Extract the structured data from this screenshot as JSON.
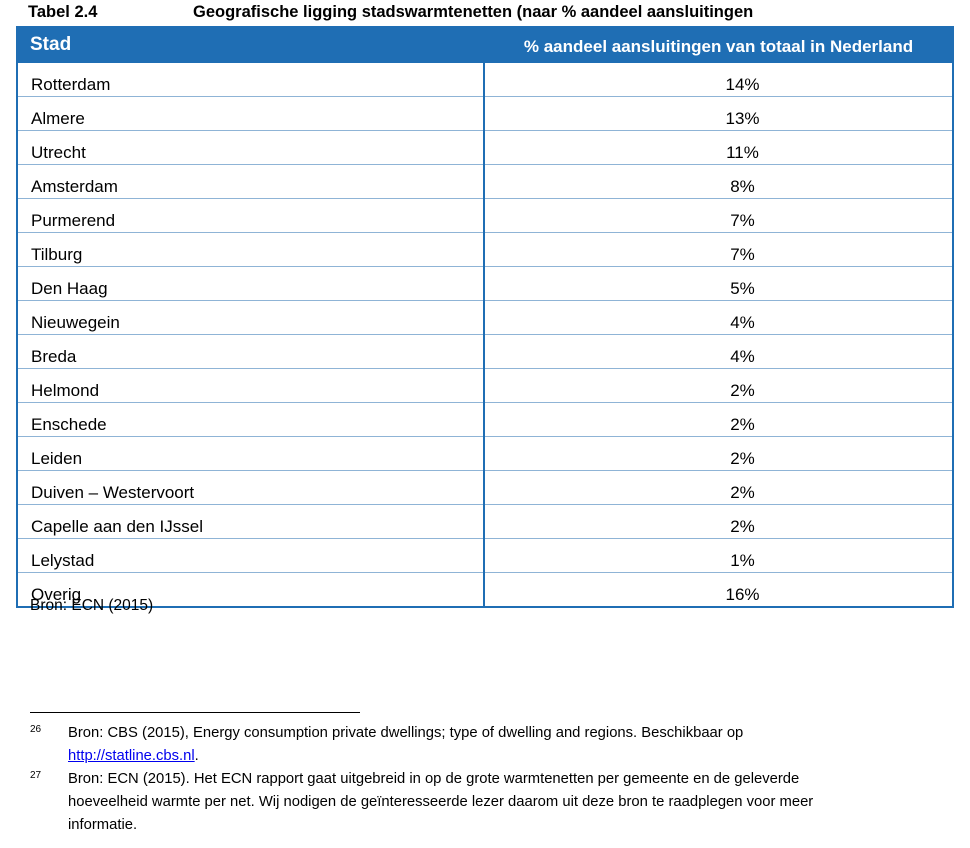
{
  "caption": {
    "number": "Tabel 2.4",
    "title": "Geografische ligging stadswarmtenetten (naar % aandeel aansluitingen"
  },
  "table": {
    "headers": [
      "Stad",
      "% aandeel aansluitingen van totaal in Nederland"
    ],
    "rows": [
      {
        "city": "Rotterdam",
        "share": "14%"
      },
      {
        "city": "Almere",
        "share": "13%"
      },
      {
        "city": "Utrecht",
        "share": "11%"
      },
      {
        "city": "Amsterdam",
        "share": "8%"
      },
      {
        "city": "Purmerend",
        "share": "7%"
      },
      {
        "city": "Tilburg",
        "share": "7%"
      },
      {
        "city": "Den Haag",
        "share": "5%"
      },
      {
        "city": "Nieuwegein",
        "share": "4%"
      },
      {
        "city": "Breda",
        "share": "4%"
      },
      {
        "city": "Helmond",
        "share": "2%"
      },
      {
        "city": "Enschede",
        "share": "2%"
      },
      {
        "city": "Leiden",
        "share": "2%"
      },
      {
        "city": "Duiven – Westervoort",
        "share": "2%"
      },
      {
        "city": "Capelle aan den IJssel",
        "share": "2%"
      },
      {
        "city": "Lelystad",
        "share": "1%"
      },
      {
        "city": "Overig",
        "share": "16%"
      }
    ]
  },
  "source": "Bron: ECN (2015)",
  "footnotes": [
    {
      "mark": "26",
      "text": "Bron: CBS (2015), Energy consumption private dwellings; type of dwelling and regions. Beschikbaar op",
      "link": "http://statline.cbs.nl",
      "after_link": "."
    },
    {
      "mark": "27",
      "text": "Bron: ECN (2015). Het ECN rapport gaat uitgebreid in op de grote warmtenetten per gemeente en de geleverde hoeveelheid warmte per net. Wij nodigen de geïnteresseerde lezer daarom uit deze bron te raadplegen voor meer informatie."
    }
  ],
  "colors": {
    "header_bg": "#1f6eb4",
    "row_rule": "#8fb4d6"
  }
}
